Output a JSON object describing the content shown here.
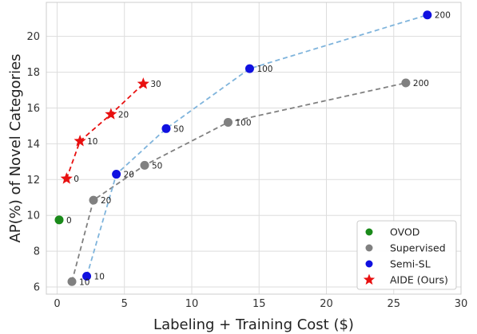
{
  "chart_data": {
    "type": "scatter",
    "title": "",
    "xlabel": "Labeling + Training Cost ($)",
    "ylabel": "AP(%) of Novel Categories",
    "xlim": [
      -0.8,
      30
    ],
    "ylim": [
      5.6,
      21.9
    ],
    "xticks": [
      0,
      5,
      10,
      15,
      20,
      25,
      30
    ],
    "yticks": [
      6,
      8,
      10,
      12,
      14,
      16,
      18,
      20
    ],
    "grid": true,
    "legend_position": "bottom-right",
    "series": [
      {
        "name": "OVOD",
        "marker": "circle",
        "color": "#1a8a1a",
        "line": "none",
        "points": [
          {
            "x": 0.15,
            "y": 9.75,
            "label": "0"
          }
        ]
      },
      {
        "name": "Supervised",
        "marker": "circle",
        "color": "#808080",
        "line": "dashed",
        "line_color": "#808080",
        "points": [
          {
            "x": 1.1,
            "y": 6.3,
            "label": "10"
          },
          {
            "x": 2.7,
            "y": 10.85,
            "label": "20"
          },
          {
            "x": 6.5,
            "y": 12.8,
            "label": "50"
          },
          {
            "x": 12.7,
            "y": 15.2,
            "label": "100"
          },
          {
            "x": 25.9,
            "y": 17.4,
            "label": "200"
          }
        ]
      },
      {
        "name": "Semi-SL",
        "marker": "circle",
        "color": "#1010e0",
        "line": "dashed",
        "line_color": "#7fb4dc",
        "points": [
          {
            "x": 2.2,
            "y": 6.6,
            "label": "10"
          },
          {
            "x": 4.4,
            "y": 12.3,
            "label": "20"
          },
          {
            "x": 8.1,
            "y": 14.85,
            "label": "50"
          },
          {
            "x": 14.3,
            "y": 18.2,
            "label": "100"
          },
          {
            "x": 27.5,
            "y": 21.2,
            "label": "200"
          }
        ]
      },
      {
        "name": "AIDE (Ours)",
        "marker": "star",
        "color": "#e81010",
        "line": "dashed",
        "line_color": "#e81010",
        "points": [
          {
            "x": 0.7,
            "y": 12.05,
            "label": "0"
          },
          {
            "x": 1.7,
            "y": 14.15,
            "label": "10"
          },
          {
            "x": 4.0,
            "y": 15.65,
            "label": "20"
          },
          {
            "x": 6.4,
            "y": 17.35,
            "label": "30"
          }
        ]
      }
    ]
  }
}
